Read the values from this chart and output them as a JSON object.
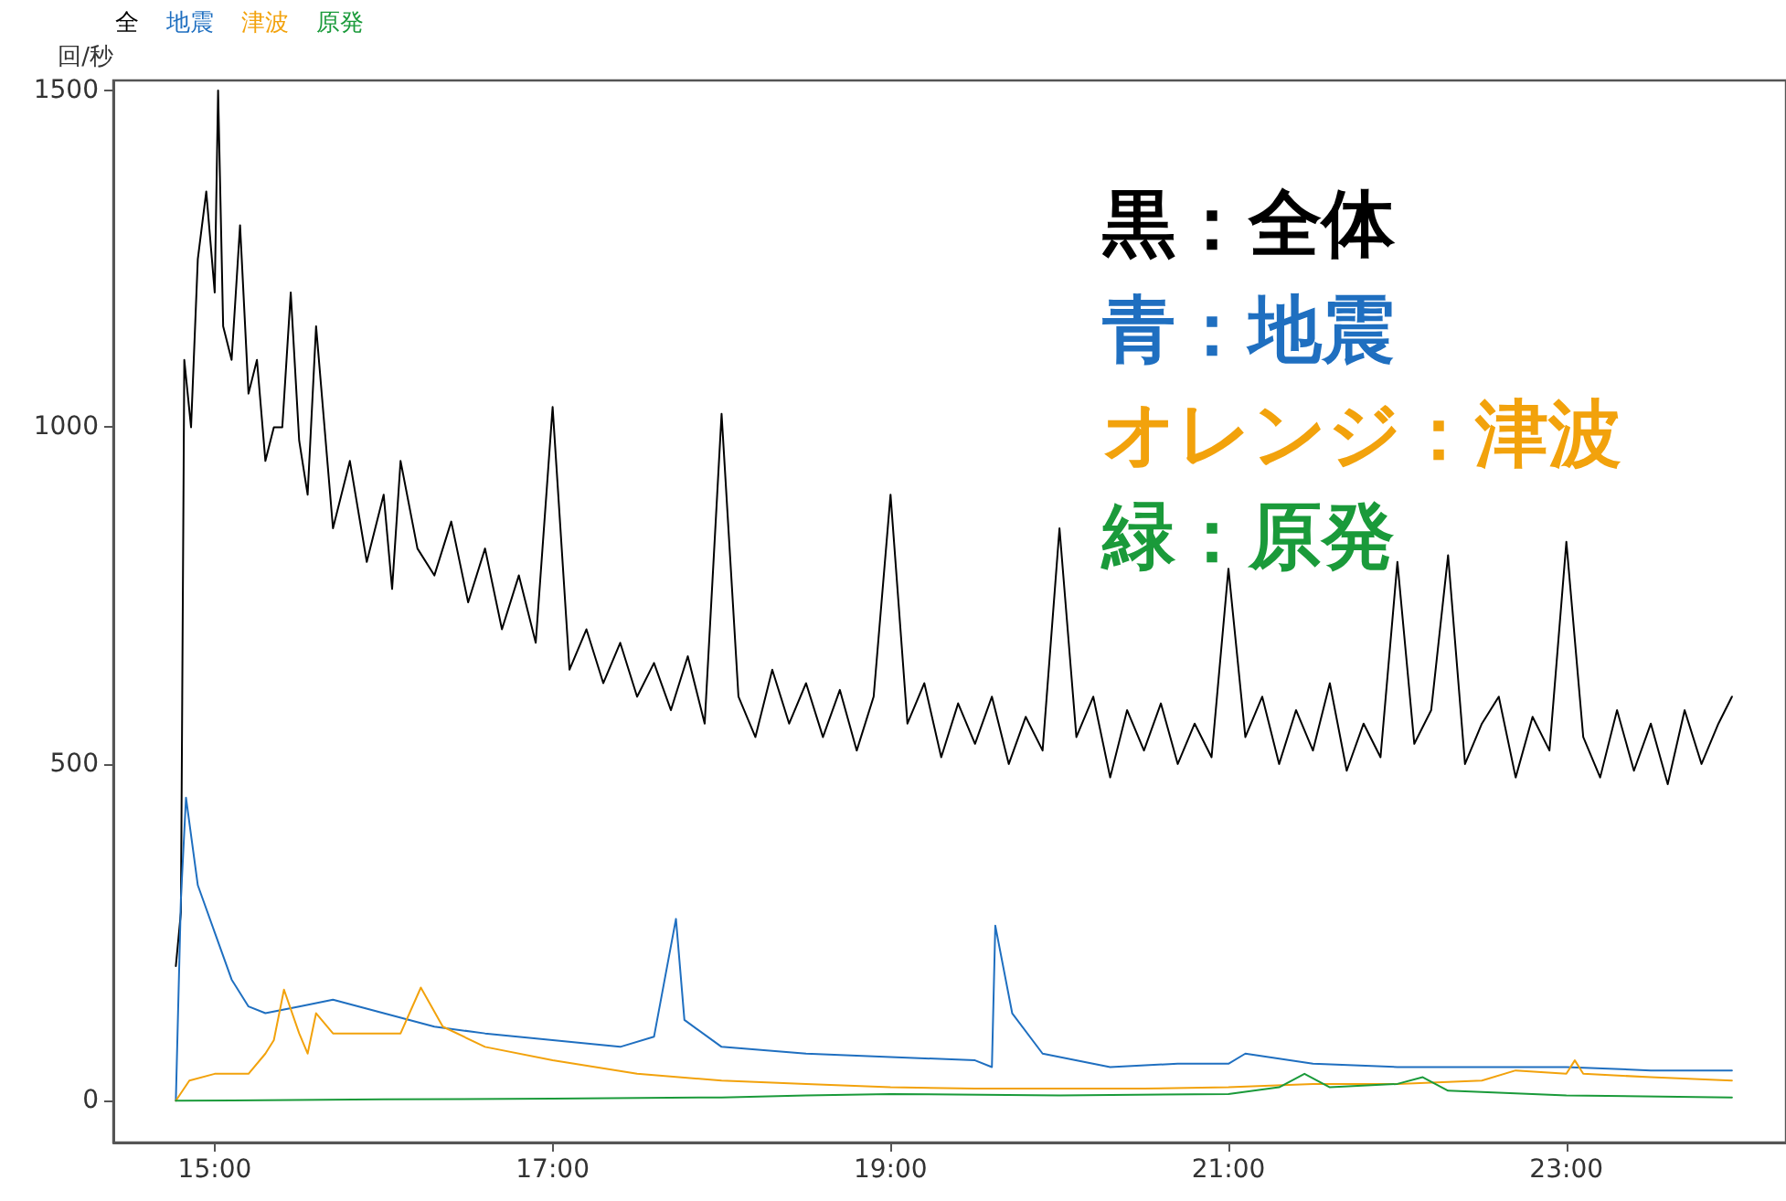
{
  "chart_data": {
    "type": "line",
    "ylabel": "回/秒",
    "legend": "top left",
    "grid": false,
    "marker": "none",
    "line_style": "solid",
    "xlim": [
      14.4,
      24.3
    ],
    "ylim": [
      -62,
      1515
    ],
    "xticks": [
      {
        "value": 15,
        "label": "15:00"
      },
      {
        "value": 17,
        "label": "17:00"
      },
      {
        "value": 19,
        "label": "19:00"
      },
      {
        "value": 21,
        "label": "21:00"
      },
      {
        "value": 23,
        "label": "23:00"
      }
    ],
    "yticks": [
      0,
      500,
      1000,
      1500
    ],
    "annotations": [
      "黒：全体",
      "青：地震",
      "オレンジ：津波",
      "緑：原発"
    ],
    "series": [
      {
        "name": "全",
        "color": "#000000",
        "x": [
          14.77,
          14.8,
          14.82,
          14.86,
          14.9,
          14.95,
          15.0,
          15.02,
          15.05,
          15.1,
          15.15,
          15.2,
          15.25,
          15.3,
          15.35,
          15.4,
          15.45,
          15.5,
          15.55,
          15.6,
          15.7,
          15.8,
          15.9,
          16.0,
          16.05,
          16.1,
          16.2,
          16.3,
          16.4,
          16.5,
          16.6,
          16.7,
          16.8,
          16.9,
          17.0,
          17.1,
          17.2,
          17.3,
          17.4,
          17.5,
          17.6,
          17.7,
          17.8,
          17.9,
          18.0,
          18.1,
          18.2,
          18.3,
          18.4,
          18.5,
          18.6,
          18.7,
          18.8,
          18.9,
          19.0,
          19.1,
          19.2,
          19.3,
          19.4,
          19.5,
          19.6,
          19.7,
          19.8,
          19.9,
          20.0,
          20.1,
          20.2,
          20.3,
          20.4,
          20.5,
          20.6,
          20.7,
          20.8,
          20.9,
          21.0,
          21.1,
          21.2,
          21.3,
          21.4,
          21.5,
          21.6,
          21.7,
          21.8,
          21.9,
          22.0,
          22.1,
          22.2,
          22.3,
          22.4,
          22.5,
          22.6,
          22.7,
          22.8,
          22.9,
          23.0,
          23.1,
          23.2,
          23.3,
          23.4,
          23.5,
          23.6,
          23.7,
          23.8,
          23.9,
          23.98
        ],
        "values": [
          200,
          280,
          1100,
          1000,
          1250,
          1350,
          1200,
          1500,
          1150,
          1100,
          1300,
          1050,
          1100,
          950,
          1000,
          1000,
          1200,
          980,
          900,
          1150,
          850,
          950,
          800,
          900,
          760,
          950,
          820,
          780,
          860,
          740,
          820,
          700,
          780,
          680,
          1030,
          640,
          700,
          620,
          680,
          600,
          650,
          580,
          660,
          560,
          1020,
          600,
          540,
          640,
          560,
          620,
          540,
          610,
          520,
          600,
          900,
          560,
          620,
          510,
          590,
          530,
          600,
          500,
          570,
          520,
          850,
          540,
          600,
          480,
          580,
          520,
          590,
          500,
          560,
          510,
          790,
          540,
          600,
          500,
          580,
          520,
          620,
          490,
          560,
          510,
          800,
          530,
          580,
          810,
          500,
          560,
          600,
          480,
          570,
          520,
          830,
          540,
          480,
          580,
          490,
          560,
          470,
          580,
          500,
          560,
          600
        ]
      },
      {
        "name": "地震",
        "color": "#1f6fc0",
        "x": [
          14.77,
          14.8,
          14.83,
          14.9,
          15.0,
          15.1,
          15.2,
          15.3,
          15.5,
          15.7,
          16.0,
          16.3,
          16.6,
          17.0,
          17.4,
          17.6,
          17.73,
          17.78,
          18.0,
          18.5,
          19.0,
          19.5,
          19.6,
          19.62,
          19.72,
          19.9,
          20.3,
          20.7,
          21.0,
          21.1,
          21.5,
          22.0,
          22.5,
          23.0,
          23.5,
          23.98
        ],
        "values": [
          0,
          300,
          450,
          320,
          250,
          180,
          140,
          130,
          140,
          150,
          130,
          110,
          100,
          90,
          80,
          95,
          270,
          120,
          80,
          70,
          65,
          60,
          50,
          260,
          130,
          70,
          50,
          55,
          55,
          70,
          55,
          50,
          50,
          50,
          45,
          45
        ]
      },
      {
        "name": "津波",
        "color": "#f2a20c",
        "x": [
          14.77,
          14.85,
          15.0,
          15.2,
          15.3,
          15.35,
          15.41,
          15.5,
          15.55,
          15.6,
          15.7,
          15.9,
          16.1,
          16.22,
          16.35,
          16.6,
          17.0,
          17.5,
          18.0,
          18.5,
          19.0,
          19.5,
          20.0,
          20.5,
          21.0,
          21.5,
          22.0,
          22.5,
          22.7,
          23.0,
          23.05,
          23.1,
          23.5,
          23.98
        ],
        "values": [
          0,
          30,
          40,
          40,
          70,
          90,
          165,
          100,
          70,
          130,
          100,
          100,
          100,
          168,
          110,
          80,
          60,
          40,
          30,
          25,
          20,
          18,
          18,
          18,
          20,
          25,
          25,
          30,
          45,
          40,
          60,
          40,
          35,
          30
        ]
      },
      {
        "name": "原発",
        "color": "#1a9a3a",
        "x": [
          14.77,
          16.0,
          17.0,
          18.0,
          18.5,
          19.0,
          20.0,
          21.0,
          21.3,
          21.45,
          21.6,
          22.0,
          22.15,
          22.3,
          23.0,
          23.98
        ],
        "values": [
          0,
          2,
          3,
          5,
          8,
          10,
          8,
          10,
          20,
          40,
          20,
          25,
          35,
          15,
          8,
          5
        ]
      }
    ]
  }
}
